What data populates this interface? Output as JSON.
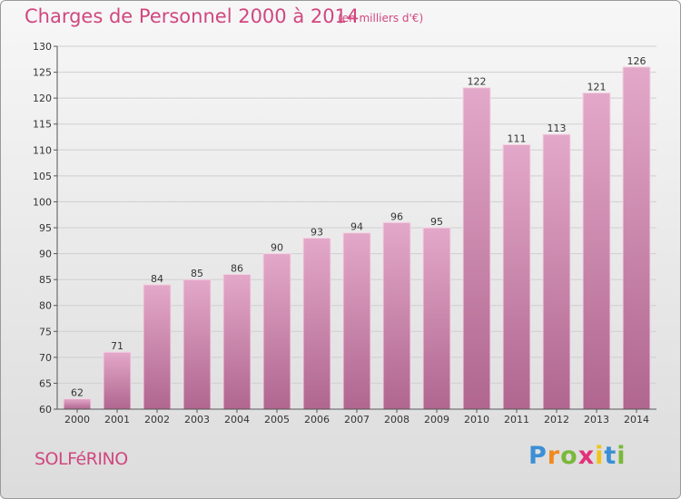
{
  "header": {
    "title": "Charges de Personnel 2000 à 2014",
    "subtitle": "(en milliers d'€)"
  },
  "footer": {
    "place": "SOLFéRINO",
    "brand": "Proxiti",
    "brand_letters": [
      {
        "ch": "P",
        "color": "#3b8fd6"
      },
      {
        "ch": "r",
        "color": "#f08a1c"
      },
      {
        "ch": "o",
        "color": "#7ab83a"
      },
      {
        "ch": "x",
        "color": "#e2317a"
      },
      {
        "ch": "i",
        "color": "#f0c419"
      },
      {
        "ch": "t",
        "color": "#3b8fd6"
      },
      {
        "ch": "i",
        "color": "#7ab83a"
      }
    ]
  },
  "colors": {
    "accent": "#d0477f",
    "bar_top": "#e3a8c9",
    "bar_bottom": "#b0668f",
    "grid": "#cfcfcf"
  },
  "chart_data": {
    "type": "bar",
    "title": "Charges de Personnel 2000 à 2014",
    "subtitle": "(en milliers d'€)",
    "categories": [
      "2000",
      "2001",
      "2002",
      "2003",
      "2004",
      "2005",
      "2006",
      "2007",
      "2008",
      "2009",
      "2010",
      "2011",
      "2012",
      "2013",
      "2014"
    ],
    "values": [
      62,
      71,
      84,
      85,
      86,
      90,
      93,
      94,
      96,
      95,
      122,
      111,
      113,
      121,
      126
    ],
    "ylim": [
      60,
      130
    ],
    "yticks": [
      60,
      65,
      70,
      75,
      80,
      85,
      90,
      95,
      100,
      105,
      110,
      115,
      120,
      125,
      130
    ],
    "grid": true,
    "xlabel": "",
    "ylabel": ""
  }
}
